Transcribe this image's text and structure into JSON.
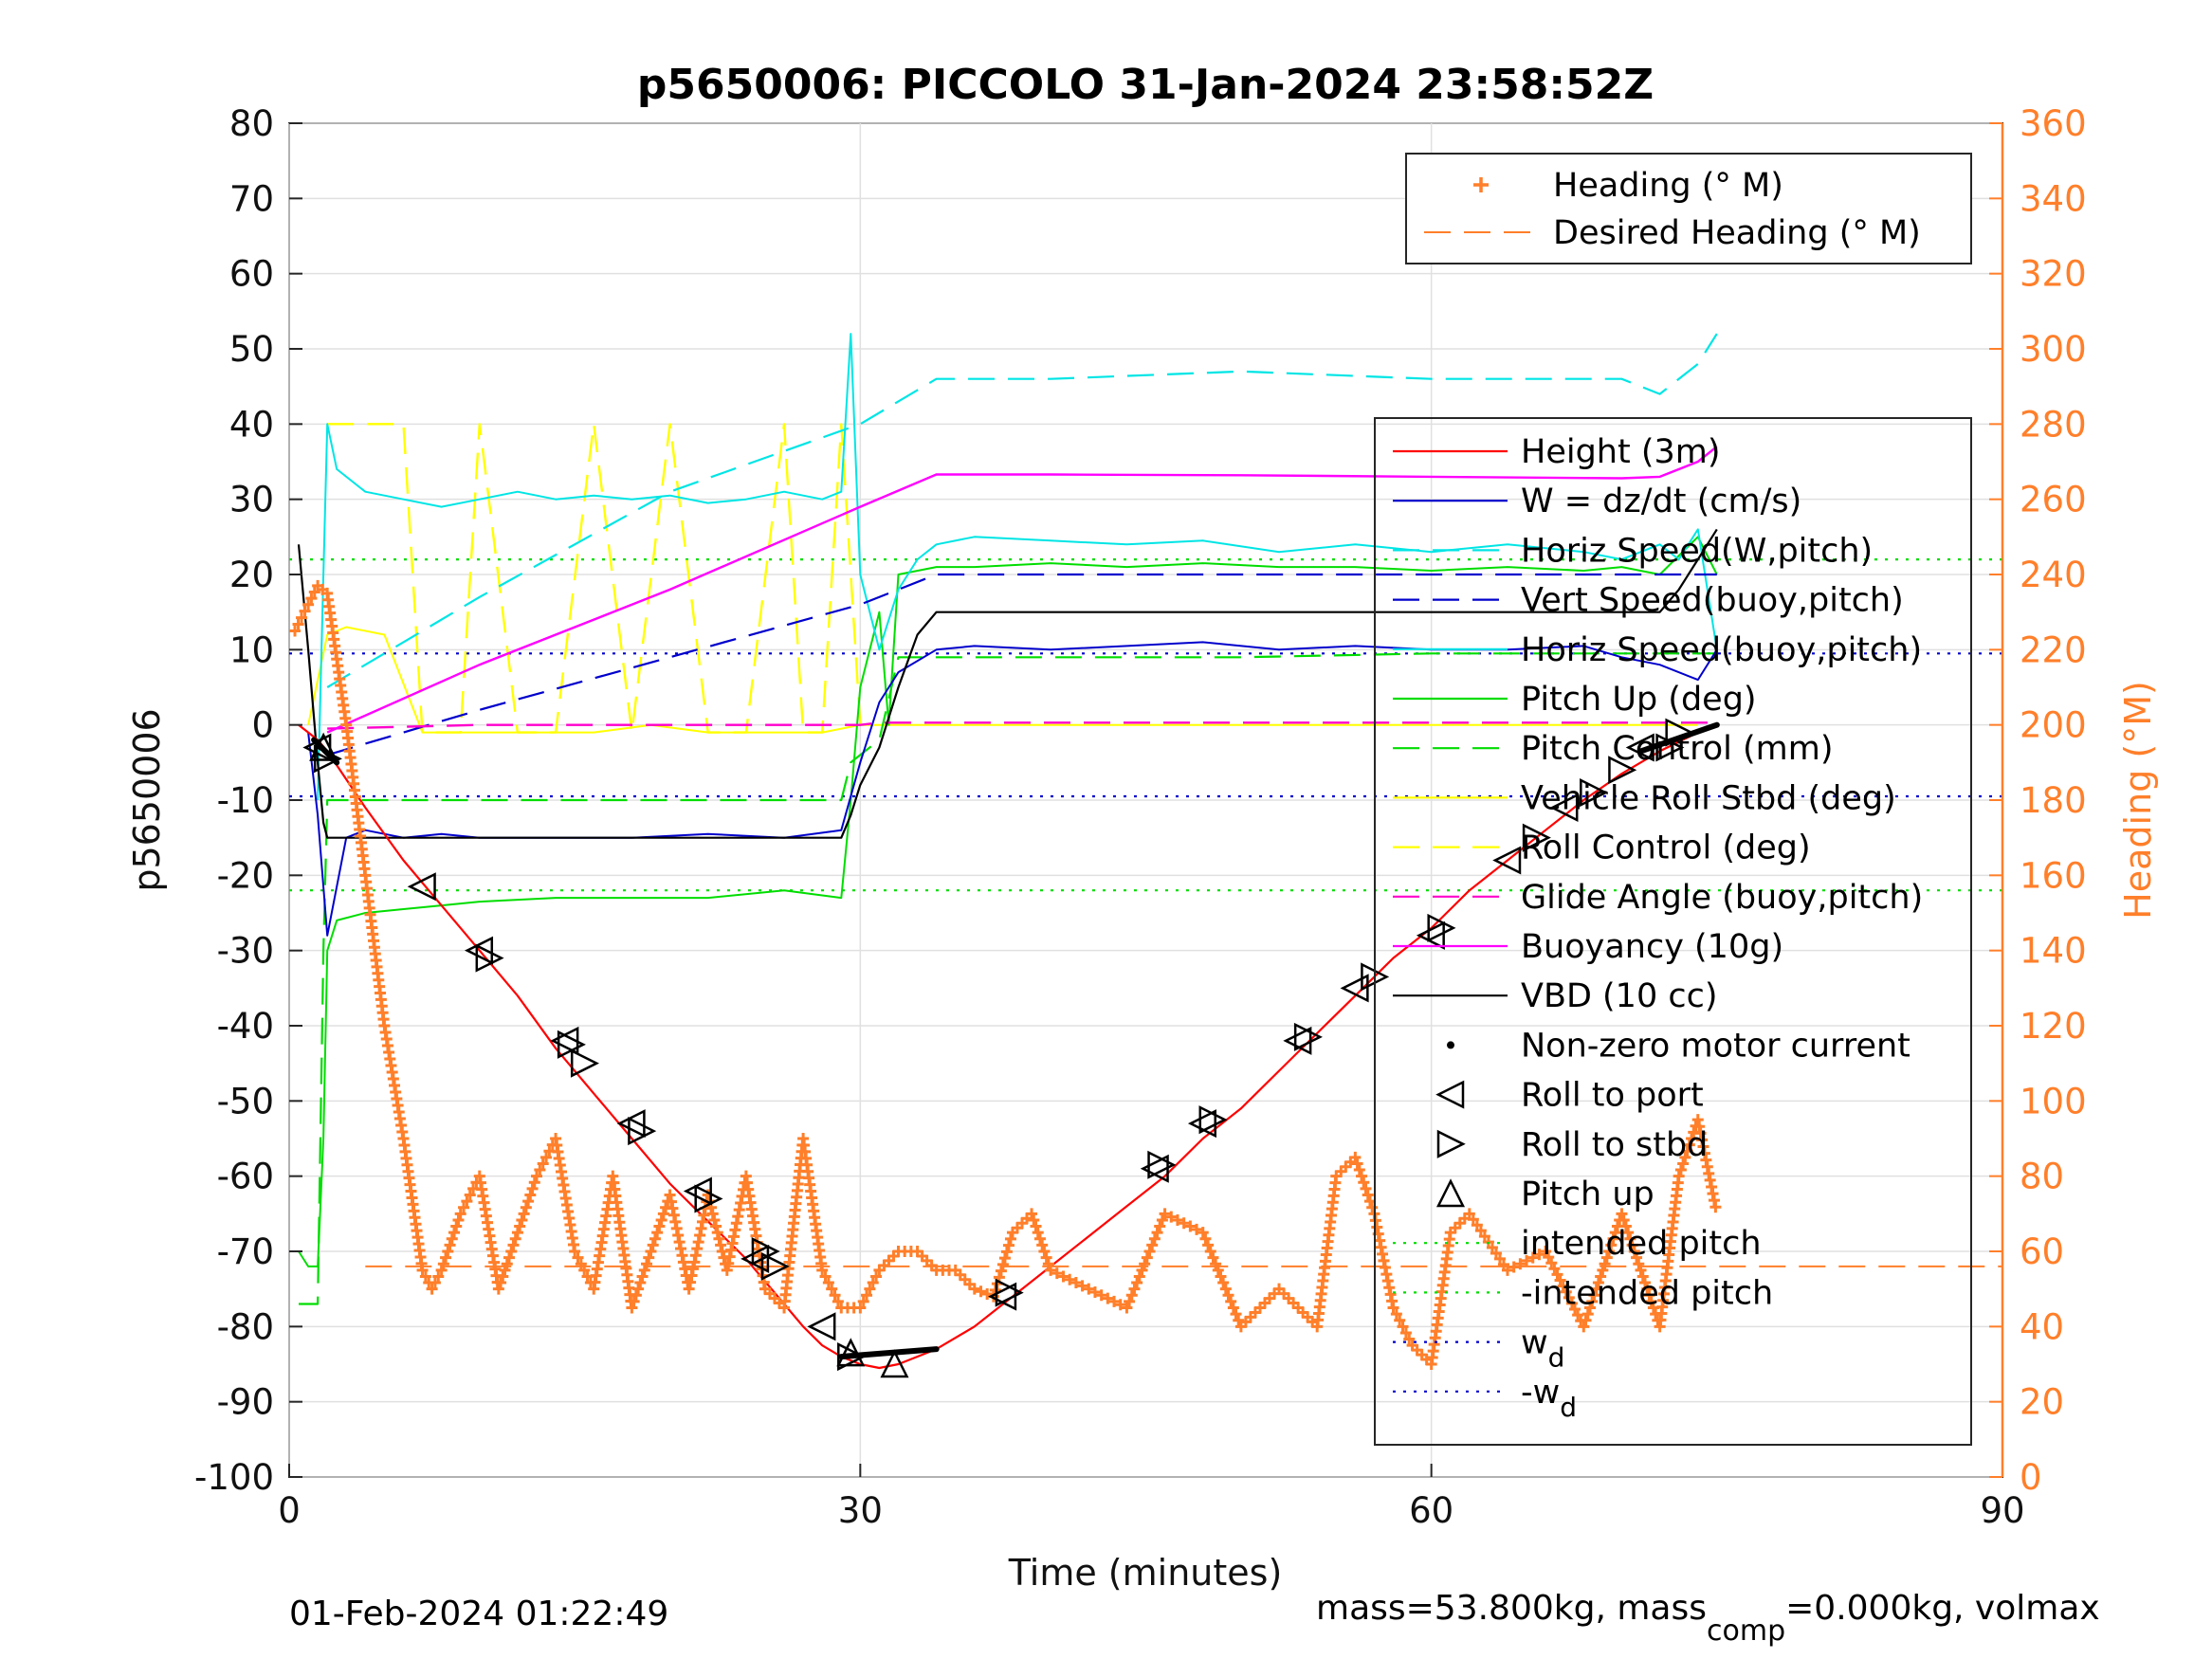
{
  "chart_data": {
    "type": "line",
    "title": "p5650006: PICCOLO 31-Jan-2024 23:58:52Z",
    "xlabel": "Time (minutes)",
    "ylabel": "p5650006",
    "y2label": "Heading (°M)",
    "xlim": [
      0,
      90
    ],
    "ylim": [
      -100,
      80
    ],
    "y2lim": [
      0,
      360
    ],
    "xticks": [
      "0",
      "30",
      "60",
      "90"
    ],
    "yticks": [
      "80",
      "70",
      "60",
      "50",
      "40",
      "30",
      "20",
      "10",
      "0",
      "-10",
      "-20",
      "-30",
      "-40",
      "-50",
      "-60",
      "-70",
      "-80",
      "-90",
      "-100"
    ],
    "y2ticks": [
      "360",
      "340",
      "320",
      "300",
      "280",
      "260",
      "240",
      "220",
      "200",
      "180",
      "160",
      "140",
      "120",
      "100",
      "80",
      "60",
      "40",
      "20",
      "0"
    ],
    "grid": true,
    "footer_left": "01-Feb-2024 01:22:49",
    "footer_right_main": "mass=53.800kg, mass",
    "footer_right_sub": "comp",
    "footer_right_rest": "=0.000kg, volmax",
    "legend_top": {
      "placement": "top-right",
      "entries": [
        "Heading (° M)",
        "Desired Heading (° M)"
      ]
    },
    "legend_main": {
      "placement": "right",
      "entries": [
        "Height (3m)",
        "W = dz/dt (cm/s)",
        "Horiz Speed(W,pitch)",
        "Vert Speed(buoy,pitch)",
        "Horiz Speed(buoy,pitch)",
        "Pitch Up (deg)",
        "Pitch Control (mm)",
        "Vehicle Roll Stbd (deg)",
        "Roll Control (deg)",
        "Glide Angle (buoy,pitch)",
        "Buoyancy (10g)",
        "VBD (10 cc)",
        "Non-zero motor current",
        "Roll to port",
        "Roll to stbd",
        "Pitch up",
        "intended pitch",
        "-intended pitch",
        "w",
        "-w"
      ],
      "subscript_d": "d"
    },
    "colors": {
      "height": "#ff0000",
      "w": "#0000cc",
      "horiz_speed_w": "#00e5e5",
      "vert_speed_buoy": "#0000cc",
      "horiz_speed_buoy": "#00e5e5",
      "pitch": "#00dd00",
      "pitch_control": "#00dd00",
      "roll": "#ffff00",
      "roll_control": "#ffff00",
      "glide_angle": "#ff00cc",
      "buoyancy": "#ff00ff",
      "vbd": "#000000",
      "heading": "#ff7f2a",
      "intended_pitch": "#00dd00",
      "wd": "#0000cc"
    },
    "series": [
      {
        "key": "height",
        "name": "Height (3m)",
        "x": [
          0.5,
          1,
          1.5,
          2,
          4,
          6,
          8,
          10,
          12,
          14,
          16,
          18,
          20,
          22,
          24,
          26,
          27,
          28,
          29,
          30,
          31,
          32,
          34,
          36,
          38,
          40,
          42,
          44,
          46,
          48,
          50,
          52,
          54,
          56,
          58,
          60,
          62,
          64,
          66,
          68,
          70,
          72,
          74,
          75
        ],
        "y": [
          0,
          -1,
          -2,
          -3.5,
          -11,
          -18,
          -24,
          -30,
          -36,
          -43,
          -49,
          -55,
          -61,
          -66,
          -71,
          -77,
          -80,
          -82.5,
          -84,
          -85,
          -85.5,
          -85,
          -83,
          -80,
          -76,
          -72,
          -68,
          -64,
          -60,
          -55,
          -51,
          -46,
          -41,
          -36,
          -31,
          -27,
          -22,
          -18,
          -14,
          -10,
          -6.5,
          -3.5,
          -1,
          0
        ]
      },
      {
        "key": "vbd",
        "name": "VBD (10 cc)",
        "x": [
          0.5,
          1,
          1.5,
          1.8,
          2,
          5,
          10,
          15,
          20,
          25,
          29,
          29.5,
          30,
          31,
          32,
          33,
          34,
          40,
          50,
          60,
          70,
          72,
          73,
          74,
          75
        ],
        "y": [
          24,
          10,
          -5,
          -13,
          -15,
          -15,
          -15,
          -15,
          -15,
          -15,
          -15,
          -12,
          -8,
          -3,
          5,
          12,
          15,
          15,
          15,
          15,
          15,
          15,
          18,
          22,
          26
        ]
      },
      {
        "key": "buoyancy",
        "name": "Buoyancy (10g)",
        "x": [
          2,
          10,
          20,
          30,
          34,
          40,
          50,
          60,
          70,
          72,
          74,
          75
        ],
        "y": [
          -1,
          8,
          18,
          29,
          33.3,
          33.3,
          33.2,
          33,
          32.8,
          33,
          35,
          37
        ]
      },
      {
        "key": "glide_angle",
        "name": "Glide Angle (buoy,pitch)",
        "x": [
          2,
          10,
          20,
          29,
          30,
          31,
          40,
          50,
          60,
          70,
          75
        ],
        "y": [
          -0.5,
          0,
          0,
          0,
          0,
          0.3,
          0.3,
          0.3,
          0.3,
          0.3,
          0.3
        ]
      },
      {
        "key": "vert_speed_buoy",
        "name": "Vert Speed(buoy,pitch)",
        "x": [
          2,
          10,
          20,
          30,
          32,
          34,
          40,
          50,
          60,
          70,
          75
        ],
        "y": [
          -4,
          2,
          9,
          16,
          18,
          20,
          20,
          20,
          20,
          20,
          20
        ]
      },
      {
        "key": "horiz_speed_w",
        "name": "Horiz Speed(W,pitch)",
        "x": [
          2,
          10,
          20,
          30,
          34,
          40,
          50,
          60,
          70,
          72,
          74,
          75
        ],
        "y": [
          5,
          17,
          31,
          40,
          46,
          46,
          47,
          46,
          46,
          44,
          48,
          52
        ]
      },
      {
        "key": "horiz_speed_buoy",
        "name": "Horiz Speed(buoy,pitch)",
        "x": [
          1.5,
          1.8,
          2,
          2.5,
          4,
          6,
          8,
          10,
          12,
          14,
          16,
          18,
          20,
          22,
          24,
          26,
          28,
          29,
          29.5,
          30,
          31,
          32,
          33,
          34,
          36,
          40,
          44,
          48,
          52,
          56,
          60,
          64,
          68,
          70,
          72,
          73,
          74,
          75
        ],
        "y": [
          -10,
          20,
          40,
          34,
          31,
          30,
          29,
          30,
          31,
          30,
          30.5,
          30,
          30.5,
          29.5,
          30,
          31,
          30,
          31,
          52,
          20,
          10,
          18,
          22,
          24,
          25,
          24.5,
          24,
          24.5,
          23,
          24,
          23,
          24,
          23,
          22,
          24,
          22,
          26,
          10
        ]
      },
      {
        "key": "w",
        "name": "W = dz/dt (cm/s)",
        "x": [
          1,
          1.5,
          2,
          3,
          4,
          6,
          8,
          10,
          14,
          18,
          22,
          26,
          29,
          30,
          31,
          32,
          34,
          36,
          40,
          44,
          48,
          52,
          56,
          60,
          64,
          68,
          70,
          72,
          74,
          75
        ],
        "y": [
          -1,
          -12,
          -28,
          -15,
          -14,
          -15,
          -14.5,
          -15,
          -15,
          -15,
          -14.5,
          -15,
          -14,
          -5,
          3,
          7,
          10,
          10.5,
          10,
          10.5,
          11,
          10,
          10.5,
          10,
          10,
          10.5,
          9,
          8,
          6,
          10
        ]
      },
      {
        "key": "pitch",
        "name": "Pitch Up (deg)",
        "x": [
          0.5,
          1,
          1.5,
          1.8,
          2,
          2.5,
          4,
          6,
          8,
          10,
          14,
          18,
          22,
          26,
          29,
          29.5,
          30,
          31,
          31.5,
          32,
          34,
          36,
          40,
          44,
          48,
          52,
          56,
          60,
          64,
          68,
          70,
          72,
          74,
          75
        ],
        "y": [
          -70,
          -72,
          -72,
          -55,
          -30,
          -26,
          -25,
          -24.5,
          -24,
          -23.5,
          -23,
          -23,
          -23,
          -22,
          -23,
          -10,
          5,
          15,
          0,
          20,
          21,
          21,
          21.5,
          21,
          21.5,
          21,
          21,
          20.5,
          21,
          20.5,
          21,
          20,
          25,
          20
        ]
      },
      {
        "key": "pitch_control",
        "name": "Pitch Control (mm)",
        "x": [
          0.5,
          1.5,
          1.8,
          2,
          10,
          20,
          29,
          29.5,
          31,
          32,
          40,
          50,
          60,
          70,
          75
        ],
        "y": [
          -77,
          -77,
          -30,
          -10,
          -10,
          -10,
          -10,
          -5,
          -2,
          9,
          9,
          9,
          9.5,
          9.5,
          9.5
        ]
      },
      {
        "key": "roll",
        "name": "Vehicle Roll Stbd (deg)",
        "x": [
          1,
          2,
          3,
          5,
          7,
          10,
          13,
          16,
          19,
          22,
          25,
          28,
          30,
          33,
          36,
          40,
          44,
          48,
          50,
          54,
          57,
          60,
          64,
          68,
          70,
          72,
          74
        ],
        "y": [
          0,
          12,
          13,
          12,
          -1,
          -1,
          -1,
          -1,
          0,
          -1,
          -1,
          -1,
          0,
          0,
          0,
          0,
          0,
          0,
          0,
          0,
          0,
          0,
          0,
          0,
          0,
          0,
          0
        ]
      },
      {
        "key": "roll_control",
        "name": "Roll Control (deg)",
        "x": [
          2,
          3,
          4,
          5,
          6,
          7,
          8,
          9,
          10,
          12,
          14,
          16,
          18,
          20,
          22,
          24,
          26,
          27,
          28,
          29,
          30
        ],
        "y": [
          40,
          40,
          40,
          40,
          40,
          -1,
          -1,
          -1,
          40,
          -1,
          -1,
          40,
          -1,
          40,
          -1,
          -1,
          40,
          -1,
          -1,
          40,
          0
        ]
      },
      {
        "key": "heading",
        "name": "Heading (° M)",
        "axis": "right",
        "x": [
          0.3,
          1,
          1.5,
          2,
          3,
          4,
          5,
          6,
          7,
          7.5,
          8,
          9,
          10,
          11,
          12,
          13,
          14,
          15,
          16,
          17,
          18,
          19,
          20,
          21,
          22,
          23,
          24,
          25,
          26,
          27,
          28,
          29,
          30,
          31,
          32,
          33,
          34,
          35,
          36,
          37,
          38,
          39,
          40,
          42,
          44,
          46,
          48,
          50,
          52,
          54,
          55,
          56,
          57,
          58,
          59,
          60,
          61,
          62,
          64,
          66,
          68,
          70,
          72,
          73,
          74,
          75
        ],
        "y": [
          225,
          232,
          237,
          235,
          200,
          160,
          120,
          90,
          55,
          50,
          55,
          70,
          80,
          50,
          65,
          80,
          90,
          60,
          50,
          80,
          45,
          60,
          75,
          50,
          75,
          55,
          80,
          50,
          45,
          90,
          55,
          45,
          45,
          55,
          60,
          60,
          55,
          55,
          50,
          48,
          65,
          70,
          55,
          50,
          45,
          70,
          65,
          40,
          50,
          40,
          80,
          85,
          70,
          45,
          35,
          30,
          65,
          70,
          55,
          60,
          40,
          70,
          40,
          80,
          95,
          70
        ]
      },
      {
        "key": "desired_heading",
        "name": "Desired Heading (° M)",
        "axis": "right",
        "x": [
          4,
          90
        ],
        "y": [
          56,
          56
        ]
      },
      {
        "key": "intended_pitch",
        "name": "intended pitch",
        "x": [
          0,
          90
        ],
        "y": [
          22,
          22
        ]
      },
      {
        "key": "neg_intended_pitch",
        "name": "-intended pitch",
        "x": [
          0,
          90
        ],
        "y": [
          -22,
          -22
        ]
      },
      {
        "key": "wd",
        "name": "w",
        "x": [
          0,
          90
        ],
        "y": [
          9.5,
          9.5
        ]
      },
      {
        "key": "neg_wd",
        "name": "-w",
        "x": [
          0,
          90
        ],
        "y": [
          -9.5,
          -9.5
        ]
      }
    ],
    "markers": {
      "roll_to_port": {
        "x": [
          1.5,
          7,
          10,
          14.5,
          18,
          21.5,
          24.5,
          28,
          37.5,
          45.5,
          48,
          53,
          56,
          60,
          64,
          67,
          71
        ],
        "y": [
          -3,
          -21.5,
          -30,
          -42,
          -53,
          -62,
          -71,
          -80,
          -76,
          -59,
          -53,
          -42,
          -35,
          -28,
          -18,
          -11,
          -3
        ]
      },
      "roll_to_stbd": {
        "x": [
          2,
          10.5,
          14.8,
          15.5,
          18.5,
          22,
          25,
          25.5,
          29.5,
          37.8,
          45.8,
          48.5,
          53.5,
          57,
          60.5,
          65.5,
          68.5,
          70,
          72.5,
          73
        ],
        "y": [
          -4.5,
          -31,
          -42.5,
          -45,
          -54,
          -63,
          -70,
          -72,
          -84,
          -75.5,
          -58.5,
          -52.5,
          -41.5,
          -33.5,
          -27,
          -15,
          -9,
          -6,
          -3,
          -1
        ]
      },
      "pitch_up": {
        "x": [
          1.8,
          29.5,
          31.8
        ],
        "y": [
          -3,
          -83.5,
          -85
        ]
      },
      "motor_current_segments": [
        {
          "x": [
            1.3,
            2.5
          ],
          "y": [
            -2,
            -5
          ]
        },
        {
          "x": [
            29,
            34
          ],
          "y": [
            -84,
            -83
          ]
        },
        {
          "x": [
            71,
            75
          ],
          "y": [
            -3.5,
            0
          ]
        }
      ]
    }
  }
}
